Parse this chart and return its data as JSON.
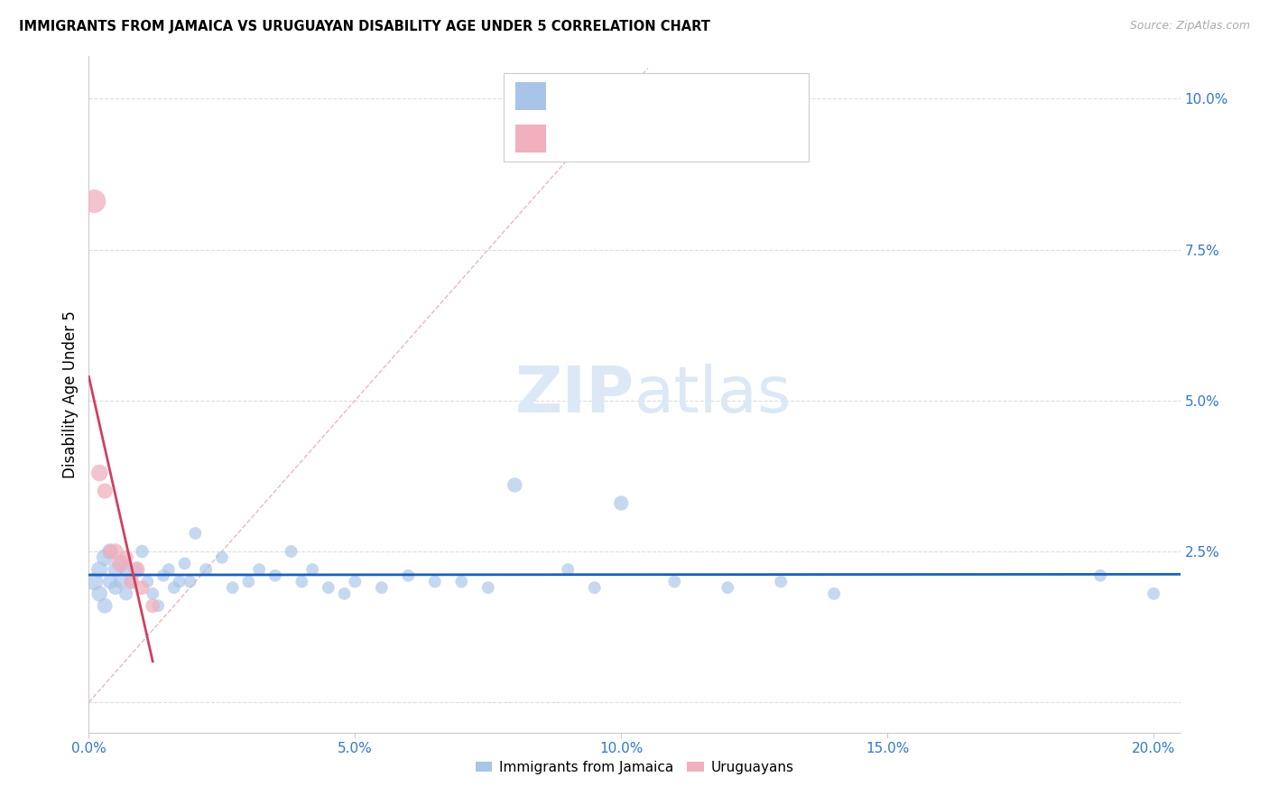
{
  "title": "IMMIGRANTS FROM JAMAICA VS URUGUAYAN DISABILITY AGE UNDER 5 CORRELATION CHART",
  "source": "Source: ZipAtlas.com",
  "ylabel": "Disability Age Under 5",
  "xlim": [
    0.0,
    0.205
  ],
  "ylim": [
    -0.005,
    0.107
  ],
  "xticks": [
    0.0,
    0.05,
    0.1,
    0.15,
    0.2
  ],
  "xticklabels": [
    "0.0%",
    "5.0%",
    "10.0%",
    "15.0%",
    "20.0%"
  ],
  "yticks": [
    0.0,
    0.025,
    0.05,
    0.075,
    0.1
  ],
  "yticklabels": [
    "",
    "2.5%",
    "5.0%",
    "7.5%",
    "10.0%"
  ],
  "bottom_legend1": "Immigrants from Jamaica",
  "bottom_legend2": "Uruguayans",
  "blue_color": "#a8c4e8",
  "pink_color": "#f0b0be",
  "blue_line_color": "#1a5fbe",
  "pink_line_color": "#d04060",
  "diag_line_color": "#e8b0b8",
  "axis_color": "#3377cc",
  "grid_color": "#dddddd",
  "watermark_color": "#dce8f5",
  "blue_x": [
    0.001,
    0.002,
    0.002,
    0.003,
    0.003,
    0.004,
    0.004,
    0.005,
    0.005,
    0.006,
    0.006,
    0.007,
    0.007,
    0.008,
    0.009,
    0.01,
    0.011,
    0.012,
    0.013,
    0.014,
    0.015,
    0.016,
    0.017,
    0.018,
    0.019,
    0.02,
    0.022,
    0.025,
    0.027,
    0.03,
    0.032,
    0.035,
    0.038,
    0.04,
    0.042,
    0.045,
    0.048,
    0.05,
    0.055,
    0.06,
    0.065,
    0.07,
    0.075,
    0.08,
    0.09,
    0.095,
    0.1,
    0.11,
    0.12,
    0.13,
    0.14,
    0.19,
    0.2
  ],
  "blue_y": [
    0.02,
    0.018,
    0.022,
    0.016,
    0.024,
    0.02,
    0.025,
    0.019,
    0.022,
    0.023,
    0.02,
    0.018,
    0.022,
    0.02,
    0.022,
    0.025,
    0.02,
    0.018,
    0.016,
    0.021,
    0.022,
    0.019,
    0.02,
    0.023,
    0.02,
    0.028,
    0.022,
    0.024,
    0.019,
    0.02,
    0.022,
    0.021,
    0.025,
    0.02,
    0.022,
    0.019,
    0.018,
    0.02,
    0.019,
    0.021,
    0.02,
    0.02,
    0.019,
    0.036,
    0.022,
    0.019,
    0.033,
    0.02,
    0.019,
    0.02,
    0.018,
    0.021,
    0.018
  ],
  "blue_s": [
    200,
    160,
    170,
    150,
    180,
    140,
    160,
    130,
    150,
    140,
    130,
    120,
    130,
    110,
    110,
    110,
    100,
    100,
    100,
    100,
    100,
    100,
    100,
    100,
    100,
    100,
    100,
    100,
    100,
    100,
    100,
    100,
    100,
    100,
    100,
    100,
    100,
    100,
    100,
    100,
    100,
    100,
    100,
    140,
    100,
    100,
    140,
    100,
    100,
    100,
    100,
    100,
    100
  ],
  "pink_x": [
    0.001,
    0.002,
    0.003,
    0.004,
    0.005,
    0.006,
    0.007,
    0.008,
    0.009,
    0.01,
    0.012
  ],
  "pink_y": [
    0.083,
    0.038,
    0.035,
    0.025,
    0.025,
    0.023,
    0.024,
    0.02,
    0.022,
    0.019,
    0.016
  ],
  "pink_s": [
    350,
    180,
    150,
    130,
    160,
    200,
    130,
    150,
    170,
    130,
    130
  ]
}
